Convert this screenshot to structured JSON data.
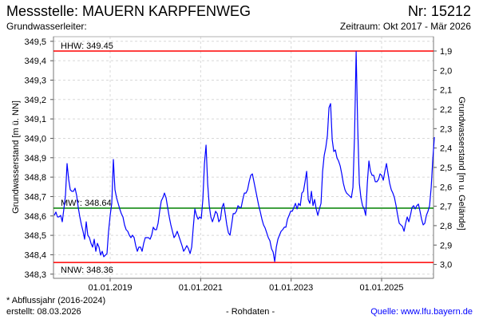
{
  "header": {
    "title": "Messstelle: MAUERN KARPFENWEG",
    "number": "Nr: 15212",
    "aquifer_label": "Grundwasserleiter:",
    "period": "Zeitraum: Okt 2017 - Mär 2026"
  },
  "footer": {
    "note": "* Abflussjahr (2016-2024)",
    "created": "erstellt:  08.03.2026",
    "data_type": "- Rohdaten -",
    "source": "Quelle: www.lfu.bayern.de"
  },
  "chart_data": {
    "type": "line",
    "title": "Messstelle: MAUERN KARPFENWEG",
    "ylabel": "Grundwasserstand [m ü. NN]",
    "y2label": "Grundwasserstand [m u. Gelände]",
    "ylim": [
      348.3,
      349.5
    ],
    "y_ticks": [
      "349,5",
      "349,4",
      "349,3",
      "349,2",
      "349,1",
      "349,0",
      "348,9",
      "348,8",
      "348,7",
      "348,6",
      "348,5",
      "348,4",
      "348,3"
    ],
    "y_tick_values": [
      349.5,
      349.4,
      349.3,
      349.2,
      349.1,
      349.0,
      348.9,
      348.8,
      348.7,
      348.6,
      348.5,
      348.4,
      348.3
    ],
    "y2_ticks": [
      "1,9",
      "2,0",
      "2,1",
      "2,2",
      "2,3",
      "2,4",
      "2,5",
      "2,6",
      "2,7",
      "2,8",
      "2,9",
      "3,0"
    ],
    "y2_tick_values": [
      1.9,
      2.0,
      2.1,
      2.2,
      2.3,
      2.4,
      2.5,
      2.6,
      2.7,
      2.8,
      2.9,
      3.0
    ],
    "ground_level": 351.35,
    "x_ticks": [
      "01.01.2019",
      "01.01.2021",
      "01.01.2023",
      "01.01.2025"
    ],
    "x_tick_values": [
      2019,
      2021,
      2023,
      2025
    ],
    "xlim": [
      2017.75,
      2026.15
    ],
    "grid": true,
    "reference_lines": [
      {
        "label": "HHW: 349.45",
        "value": 349.45,
        "color": "#ff0000"
      },
      {
        "label": "MW*: 348.64",
        "value": 348.64,
        "color": "#008000"
      },
      {
        "label": "NNW: 348.36",
        "value": 348.36,
        "color": "#ff0000"
      }
    ],
    "series": [
      {
        "name": "Grundwasserstand",
        "color": "#0000ff",
        "x_start": 2017.765,
        "x_step": 0.0353,
        "values": [
          348.603,
          348.62,
          348.595,
          348.595,
          348.603,
          348.57,
          348.636,
          348.706,
          348.87,
          348.788,
          348.735,
          348.727,
          348.727,
          348.743,
          348.706,
          348.644,
          348.595,
          348.554,
          348.521,
          348.48,
          348.57,
          348.501,
          348.488,
          348.459,
          348.439,
          348.48,
          348.418,
          348.459,
          348.439,
          348.398,
          348.418,
          348.39,
          348.398,
          348.406,
          348.521,
          348.603,
          348.665,
          348.891,
          348.735,
          348.694,
          348.665,
          348.636,
          348.612,
          348.595,
          348.554,
          348.529,
          348.521,
          348.501,
          348.488,
          348.501,
          348.488,
          348.447,
          348.418,
          348.439,
          348.439,
          348.418,
          348.459,
          348.488,
          348.488,
          348.488,
          348.48,
          348.501,
          348.542,
          348.529,
          348.529,
          348.562,
          348.624,
          348.677,
          348.694,
          348.718,
          348.694,
          348.644,
          348.595,
          348.554,
          348.521,
          348.488,
          348.501,
          348.521,
          348.496,
          348.472,
          348.447,
          348.418,
          348.431,
          348.447,
          348.431,
          348.406,
          348.439,
          348.542,
          348.636,
          348.603,
          348.583,
          348.595,
          348.587,
          348.685,
          348.87,
          348.965,
          348.768,
          348.653,
          348.595,
          348.57,
          348.595,
          348.624,
          348.612,
          348.57,
          348.583,
          348.644,
          348.665,
          348.612,
          348.554,
          348.513,
          348.501,
          348.554,
          348.612,
          348.612,
          348.624,
          348.653,
          348.644,
          348.644,
          348.685,
          348.718,
          348.718,
          348.735,
          348.776,
          348.809,
          348.817,
          348.776,
          348.735,
          348.694,
          348.653,
          348.62,
          348.583,
          348.554,
          348.538,
          348.513,
          348.488,
          348.472,
          348.431,
          348.414,
          348.365,
          348.439,
          348.48,
          348.501,
          348.521,
          348.529,
          348.542,
          348.542,
          348.583,
          348.603,
          348.624,
          348.624,
          348.644,
          348.665,
          348.636,
          348.665,
          348.653,
          348.718,
          348.727,
          348.776,
          348.83,
          348.685,
          348.665,
          348.727,
          348.653,
          348.685,
          348.636,
          348.603,
          348.636,
          348.665,
          348.83,
          348.912,
          348.953,
          349.014,
          349.158,
          349.179,
          348.994,
          348.932,
          348.94,
          348.899,
          348.883,
          348.858,
          348.817,
          348.768,
          348.735,
          348.718,
          348.71,
          348.702,
          348.694,
          348.747,
          349.014,
          349.446,
          349.055,
          348.768,
          348.694,
          348.653,
          348.636,
          348.603,
          348.768,
          348.883,
          348.83,
          348.809,
          348.809,
          348.776,
          348.776,
          348.788,
          348.817,
          348.809,
          348.784,
          348.83,
          348.87,
          348.817,
          348.768,
          348.735,
          348.718,
          348.694,
          348.653,
          348.603,
          348.562,
          348.554,
          348.546,
          348.521,
          348.562,
          348.595,
          348.57,
          348.603,
          348.644,
          348.653,
          348.636,
          348.653,
          348.661,
          348.624,
          348.583,
          348.554,
          348.562,
          348.603,
          348.624,
          348.653,
          348.747,
          348.891,
          349.006
        ]
      }
    ]
  }
}
